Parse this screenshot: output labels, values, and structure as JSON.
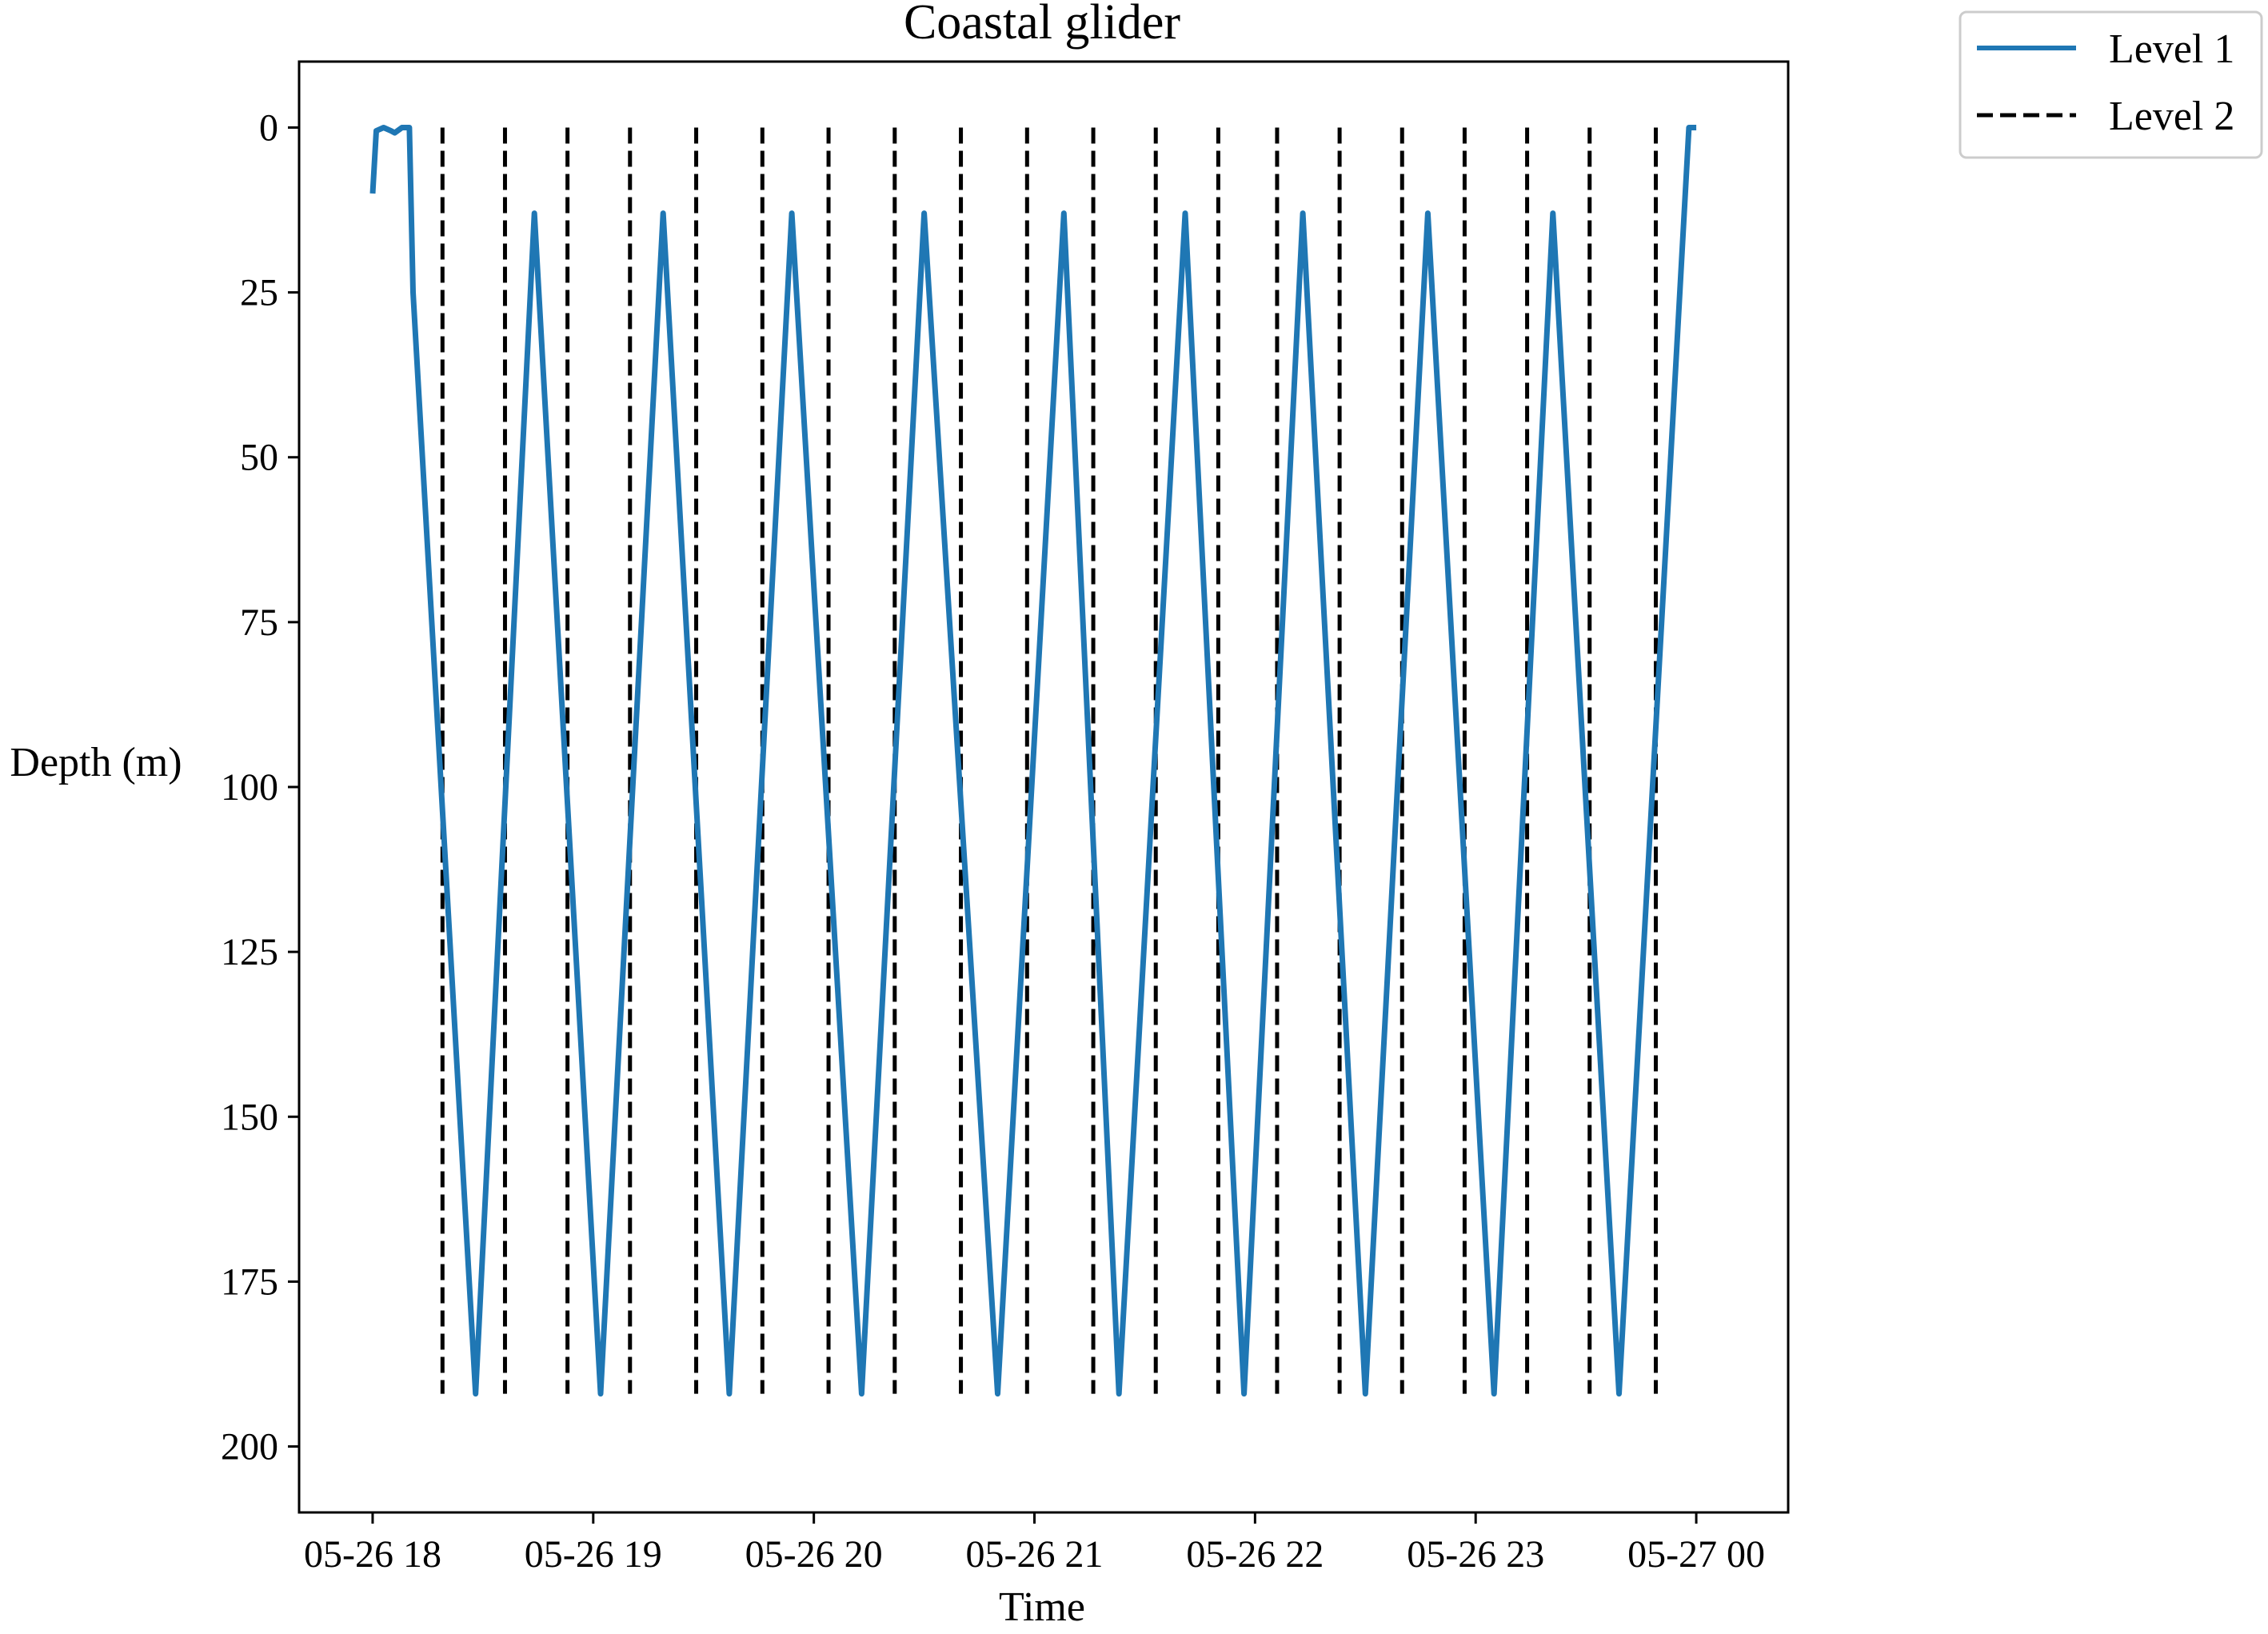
{
  "chart_data": {
    "type": "line",
    "title": "Coastal glider",
    "xlabel": "Time",
    "ylabel": "Depth (m)",
    "y_inverted": true,
    "ylim": [
      210,
      -10
    ],
    "xlim": [
      "05-26 17:40",
      "05-27 00:25"
    ],
    "x_ticks": [
      {
        "label": "05-26 18",
        "t": "05-26 18:00"
      },
      {
        "label": "05-26 19",
        "t": "05-26 19:00"
      },
      {
        "label": "05-26 20",
        "t": "05-26 20:00"
      },
      {
        "label": "05-26 21",
        "t": "05-26 21:00"
      },
      {
        "label": "05-26 22",
        "t": "05-26 22:00"
      },
      {
        "label": "05-26 23",
        "t": "05-26 23:00"
      },
      {
        "label": "05-27 00",
        "t": "05-27 00:00"
      }
    ],
    "y_ticks": [
      0,
      25,
      50,
      75,
      100,
      125,
      150,
      175,
      200
    ],
    "grid": false,
    "legend": {
      "placement": "outside-top-right",
      "entries": [
        "Level 1",
        "Level 2"
      ]
    },
    "series": [
      {
        "name": "Level 1",
        "color": "#1f77b4",
        "style": "solid",
        "points": [
          [
            "05-26 18:00",
            10
          ],
          [
            "05-26 18:01",
            0.5
          ],
          [
            "05-26 18:03",
            0
          ],
          [
            "05-26 18:05",
            0.5
          ],
          [
            "05-26 18:06",
            0.8
          ],
          [
            "05-26 18:08",
            0
          ],
          [
            "05-26 18:10",
            0
          ],
          [
            "05-26 18:11",
            25
          ],
          [
            "05-26 18:28",
            192
          ],
          [
            "05-26 18:44",
            13
          ],
          [
            "05-26 19:02",
            192
          ],
          [
            "05-26 19:19",
            13
          ],
          [
            "05-26 19:37",
            192
          ],
          [
            "05-26 19:54",
            13
          ],
          [
            "05-26 20:13",
            192
          ],
          [
            "05-26 20:30",
            13
          ],
          [
            "05-26 20:50",
            192
          ],
          [
            "05-26 21:08",
            13
          ],
          [
            "05-26 21:23",
            192
          ],
          [
            "05-26 21:41",
            13
          ],
          [
            "05-26 21:57",
            192
          ],
          [
            "05-26 22:13",
            13
          ],
          [
            "05-26 22:30",
            192
          ],
          [
            "05-26 22:47",
            13
          ],
          [
            "05-26 23:05",
            192
          ],
          [
            "05-26 23:21",
            13
          ],
          [
            "05-26 23:39",
            192
          ],
          [
            "05-26 23:58",
            0
          ],
          [
            "05-27 00:00",
            0
          ]
        ]
      },
      {
        "name": "Level 2",
        "color": "#000000",
        "style": "dashed",
        "vertical_lines": {
          "y_from": 0,
          "y_to": 192,
          "x": [
            "05-26 18:19",
            "05-26 18:36",
            "05-26 18:53",
            "05-26 19:10",
            "05-26 19:28",
            "05-26 19:46",
            "05-26 20:04",
            "05-26 20:22",
            "05-26 20:40",
            "05-26 20:58",
            "05-26 21:16",
            "05-26 21:33",
            "05-26 21:50",
            "05-26 22:06",
            "05-26 22:23",
            "05-26 22:40",
            "05-26 22:57",
            "05-26 23:14",
            "05-26 23:31",
            "05-26 23:49"
          ]
        }
      }
    ]
  }
}
